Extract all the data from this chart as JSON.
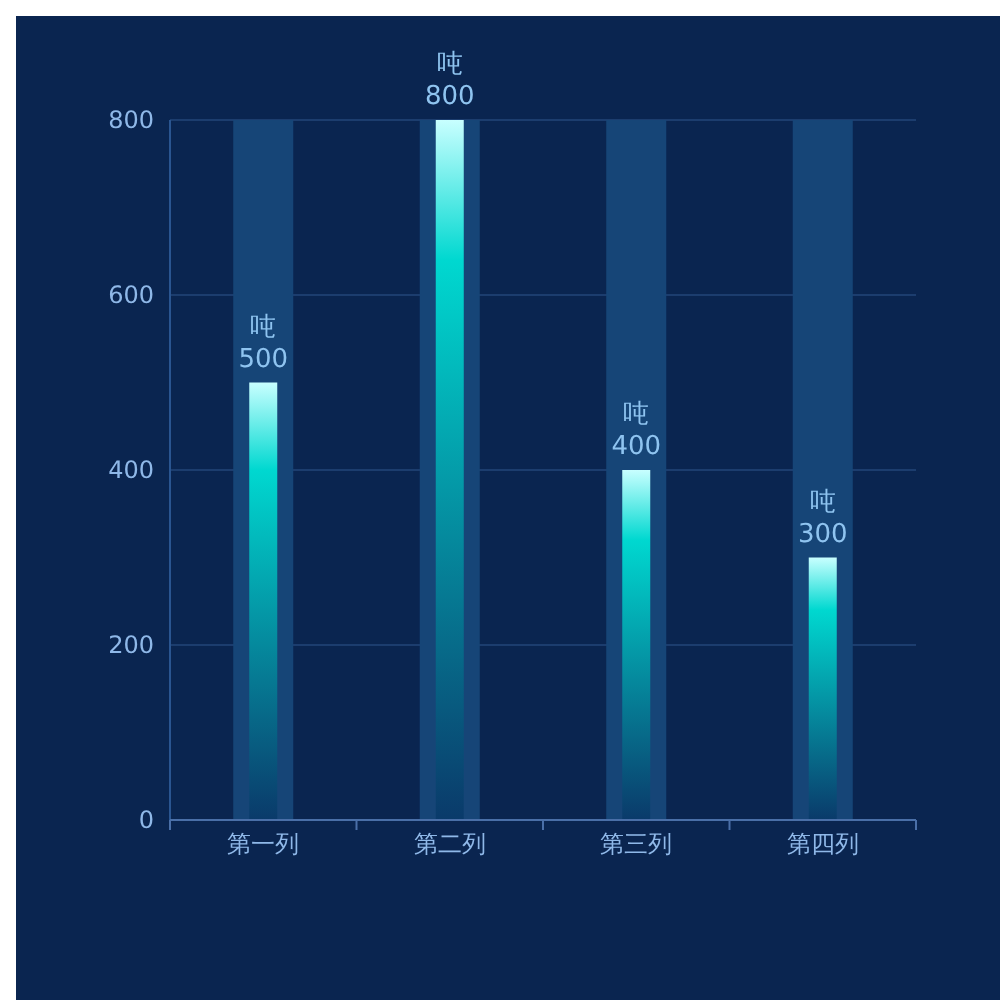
{
  "chart_data": {
    "type": "bar",
    "categories": [
      "第一列",
      "第二列",
      "第三列",
      "第四列"
    ],
    "series": [
      {
        "color": "#164577",
        "values": [
          800,
          800,
          800,
          800
        ]
      },
      {
        "color": "#00d8d0",
        "values": [
          500,
          800,
          400,
          300
        ],
        "value_labels": [
          "吨\n500",
          "吨\n800",
          "吨\n400",
          "吨\n300"
        ]
      }
    ],
    "ylim": [
      0,
      800
    ],
    "yticks": [
      0,
      200,
      400,
      600,
      800
    ],
    "grid": "y"
  }
}
